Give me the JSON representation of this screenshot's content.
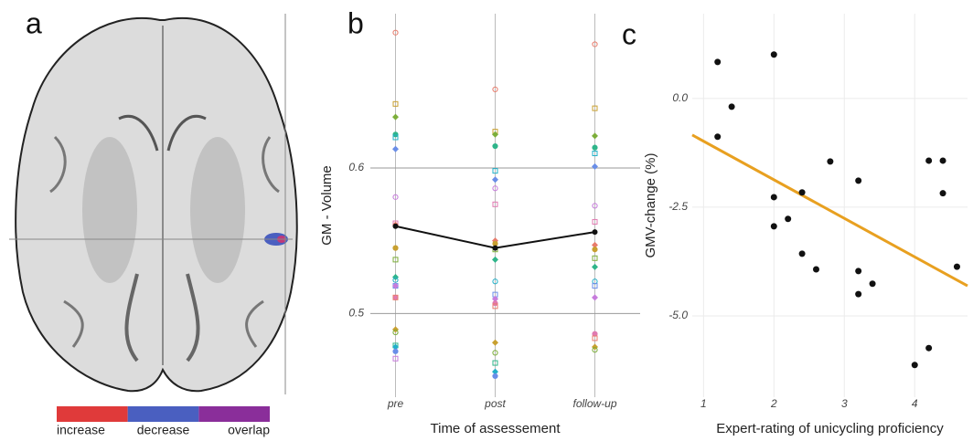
{
  "panel_a": {
    "label": "a",
    "colorbar": [
      {
        "label": "increase",
        "color": "#e03a3a"
      },
      {
        "label": "decrease",
        "color": "#4a5fc0"
      },
      {
        "label": "overlap",
        "color": "#8a2e9a"
      }
    ]
  },
  "chart_data": [
    {
      "type": "line",
      "label": "b",
      "y_label": "GM - Volume",
      "x_label": "Time of assessement",
      "categories": [
        "pre",
        "post",
        "follow-up"
      ],
      "values": [
        0.56,
        0.545,
        0.556
      ],
      "color": "#111111",
      "individual_values": [
        [
          0.693,
          0.644,
          0.635,
          0.623,
          0.621,
          0.613,
          0.58,
          0.562,
          0.561,
          0.545,
          0.537,
          0.525,
          0.523,
          0.519,
          0.519,
          0.511,
          0.511,
          0.489,
          0.487,
          0.478,
          0.477,
          0.474,
          0.469
        ],
        [
          0.654,
          0.625,
          0.623,
          0.615,
          0.598,
          0.592,
          0.586,
          0.575,
          0.55,
          0.548,
          0.544,
          0.537,
          0.522,
          0.513,
          0.51,
          0.507,
          0.505,
          0.48,
          0.473,
          0.466,
          0.46,
          0.457
        ],
        [
          0.685,
          0.641,
          0.622,
          0.614,
          0.61,
          0.601,
          0.574,
          0.563,
          0.547,
          0.544,
          0.538,
          0.532,
          0.522,
          0.519,
          0.511,
          0.486,
          0.483,
          0.477,
          0.475
        ]
      ],
      "point_colors": [
        "#e87c6c",
        "#c8a030",
        "#7cae3a",
        "#2fb58a",
        "#22b0c8",
        "#6a8ee8",
        "#c77cdc",
        "#e07ab0"
      ],
      "ylim": [
        0.4425,
        0.706
      ],
      "yticks": [
        0.5,
        0.6
      ],
      "grid": true
    },
    {
      "type": "scatter",
      "label": "c",
      "y_label": "GMV-change (%)",
      "x_label": "Expert-rating of unicycling proficiency",
      "x": [
        1.2,
        1.4,
        1.2,
        2,
        2,
        2,
        2.2,
        2.4,
        2.4,
        2.6,
        2.8,
        3.2,
        3.2,
        3.2,
        3.4,
        4,
        4.2,
        4.2,
        4.4,
        4.4,
        4.6
      ],
      "values": [
        0.84,
        -0.19,
        -0.88,
        1.01,
        -2.27,
        -2.94,
        -2.77,
        -2.16,
        -3.57,
        -3.93,
        -1.45,
        -1.89,
        -3.97,
        -4.5,
        -4.26,
        -6.13,
        -5.74,
        -1.43,
        -1.43,
        -2.18,
        -3.87
      ],
      "color": "#111111",
      "fit": {
        "x": [
          0.84,
          4.75
        ],
        "values": [
          -0.84,
          -4.31
        ],
        "color": "#e8a020"
      },
      "xlim": [
        0.84,
        4.75
      ],
      "xticks": [
        1,
        2,
        3,
        4
      ],
      "ylim": [
        -6.87,
        1.95
      ],
      "yticks": [
        {
          "value": 0,
          "label": "0.0"
        },
        {
          "value": -2.5,
          "label": "-2.5"
        },
        {
          "value": -5,
          "label": "-5.0"
        }
      ],
      "grid": true
    }
  ]
}
